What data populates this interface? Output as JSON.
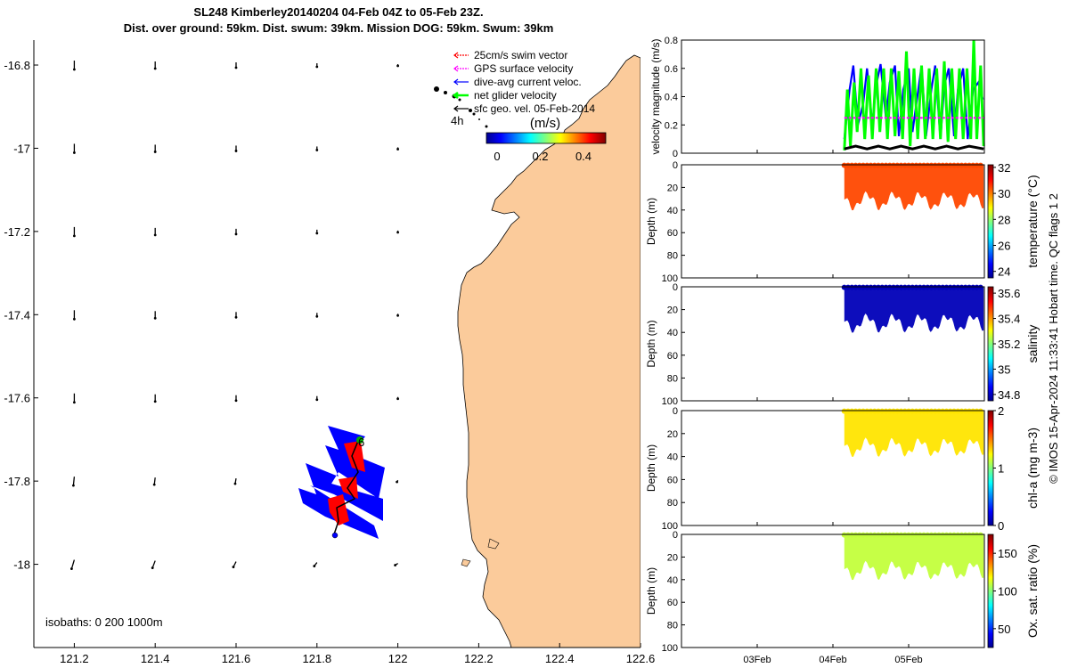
{
  "title": {
    "line1": "SL248 Kimberley20140204 04-Feb 04Z to 05-Feb 23Z.",
    "line2": "Dist. over ground: 59km. Dist. swum: 39km. Mission DOG: 59km. Swum: 39km"
  },
  "map": {
    "lon_ticks": [
      "121.2",
      "121.4",
      "121.6",
      "121.8",
      "122",
      "122.2",
      "122.4",
      "122.6"
    ],
    "lat_ticks": [
      "-16.8",
      "-17",
      "-17.2",
      "-17.4",
      "-17.6",
      "-17.8",
      "-18"
    ],
    "legend": [
      {
        "label": "25cm/s swim vector",
        "color": "#ff0000"
      },
      {
        "label": "GPS surface velocity",
        "color": "#ff00ff"
      },
      {
        "label": "dive-avg current veloc.",
        "color": "#0000ff"
      },
      {
        "label": "net glider velocity",
        "color": "#00ff00"
      },
      {
        "label": "sfc geo. vel. 05-Feb-2014",
        "color": "#000000"
      }
    ],
    "colorbar": {
      "title": "(m/s)",
      "ticks": [
        "0",
        "0.2",
        "0.4"
      ]
    },
    "time_label": "4h",
    "end_label": "6",
    "isobaths": "isobaths: 0   200  1000m",
    "colors": {
      "land": "#fbcb9b",
      "track_fill": "#0000ff",
      "track_red": "#ff0000"
    }
  },
  "chart_data": [
    {
      "type": "line",
      "ylabel": "velocity magnitude (m/s)",
      "ylim": [
        0,
        0.8
      ],
      "y_ticks": [
        "0",
        "0.2",
        "0.4",
        "0.6",
        "0.8"
      ],
      "x_ticks": [
        "03Feb",
        "04Feb",
        "05Feb"
      ],
      "series": [
        {
          "color": "#0000ff",
          "x_days": [
            4.15,
            4.22,
            4.27,
            4.33,
            4.4,
            4.45,
            4.52,
            4.57,
            4.63,
            4.7,
            4.75,
            4.82,
            4.87,
            4.93,
            5.0,
            5.05,
            5.12,
            5.17,
            5.23,
            5.3,
            5.35,
            5.42,
            5.47,
            5.53,
            5.6,
            5.65,
            5.72,
            5.78,
            5.85,
            5.92,
            5.98
          ],
          "y": [
            0.1,
            0.45,
            0.62,
            0.2,
            0.35,
            0.6,
            0.2,
            0.48,
            0.63,
            0.25,
            0.5,
            0.62,
            0.12,
            0.45,
            0.6,
            0.15,
            0.42,
            0.62,
            0.12,
            0.45,
            0.62,
            0.1,
            0.48,
            0.6,
            0.12,
            0.45,
            0.6,
            0.1,
            0.45,
            0.5,
            0.38
          ]
        },
        {
          "color": "#00ff00",
          "x_days": [
            4.15,
            4.19,
            4.23,
            4.28,
            4.32,
            4.37,
            4.42,
            4.47,
            4.52,
            4.57,
            4.62,
            4.67,
            4.72,
            4.77,
            4.82,
            4.87,
            4.92,
            4.97,
            5.02,
            5.07,
            5.12,
            5.17,
            5.22,
            5.27,
            5.32,
            5.37,
            5.42,
            5.47,
            5.52,
            5.57,
            5.62,
            5.67,
            5.72,
            5.77,
            5.82,
            5.86,
            5.9,
            5.95,
            5.99
          ],
          "y": [
            0.02,
            0.45,
            0.05,
            0.5,
            0.15,
            0.6,
            0.1,
            0.55,
            0.1,
            0.6,
            0.15,
            0.6,
            0.1,
            0.6,
            0.12,
            0.58,
            0.1,
            0.72,
            0.05,
            0.6,
            0.1,
            0.62,
            0.1,
            0.6,
            0.1,
            0.6,
            0.1,
            0.65,
            0.08,
            0.6,
            0.1,
            0.6,
            0.1,
            0.6,
            0.1,
            0.8,
            0.1,
            0.62,
            0.05
          ]
        },
        {
          "color": "#ff00ff",
          "dashed": true,
          "x_days": [
            4.15,
            5.99
          ],
          "y": [
            0.25,
            0.25
          ]
        },
        {
          "color": "#000000",
          "x_days": [
            4.15,
            4.3,
            4.45,
            4.6,
            4.75,
            4.9,
            5.05,
            5.2,
            5.35,
            5.5,
            5.65,
            5.8,
            5.99
          ],
          "y": [
            0.03,
            0.05,
            0.03,
            0.05,
            0.03,
            0.05,
            0.03,
            0.05,
            0.03,
            0.05,
            0.03,
            0.05,
            0.03
          ]
        }
      ]
    },
    {
      "type": "heatmap",
      "ylabel": "Depth (m)",
      "colorbar_label": "temperature (°C)",
      "y_ticks": [
        "0",
        "20",
        "40",
        "60",
        "80",
        "100"
      ],
      "ylim": [
        100,
        0
      ],
      "clim": [
        23.5,
        32.2
      ],
      "cbar_ticks": [
        "32",
        "30",
        "28",
        "26",
        "24"
      ],
      "typical_value": 30.5
    },
    {
      "type": "heatmap",
      "ylabel": "Depth (m)",
      "colorbar_label": "salinity",
      "y_ticks": [
        "0",
        "20",
        "40",
        "60",
        "80",
        "100"
      ],
      "ylim": [
        100,
        0
      ],
      "clim": [
        34.75,
        35.65
      ],
      "cbar_ticks": [
        "35.6",
        "35.4",
        "35.2",
        "35",
        "34.8"
      ],
      "typical_value": 34.8
    },
    {
      "type": "heatmap",
      "ylabel": "Depth (m)",
      "colorbar_label": "chl-a (mg m-3)",
      "y_ticks": [
        "0",
        "20",
        "40",
        "60",
        "80",
        "100"
      ],
      "ylim": [
        100,
        0
      ],
      "clim": [
        0,
        2
      ],
      "cbar_ticks": [
        "2",
        "1",
        "0"
      ],
      "typical_value": 1.3
    },
    {
      "type": "heatmap",
      "ylabel": "Depth (m)",
      "colorbar_label": "Ox. sat. ratio (%)",
      "y_ticks": [
        "0",
        "20",
        "40",
        "60",
        "80",
        "100"
      ],
      "ylim": [
        100,
        0
      ],
      "clim": [
        25,
        175
      ],
      "cbar_ticks": [
        "150",
        "100",
        "50"
      ],
      "typical_value": 110
    }
  ],
  "footer": "© IMOS 15-Apr-2024 11:33:41 Hobart time. QC flags 1  2"
}
